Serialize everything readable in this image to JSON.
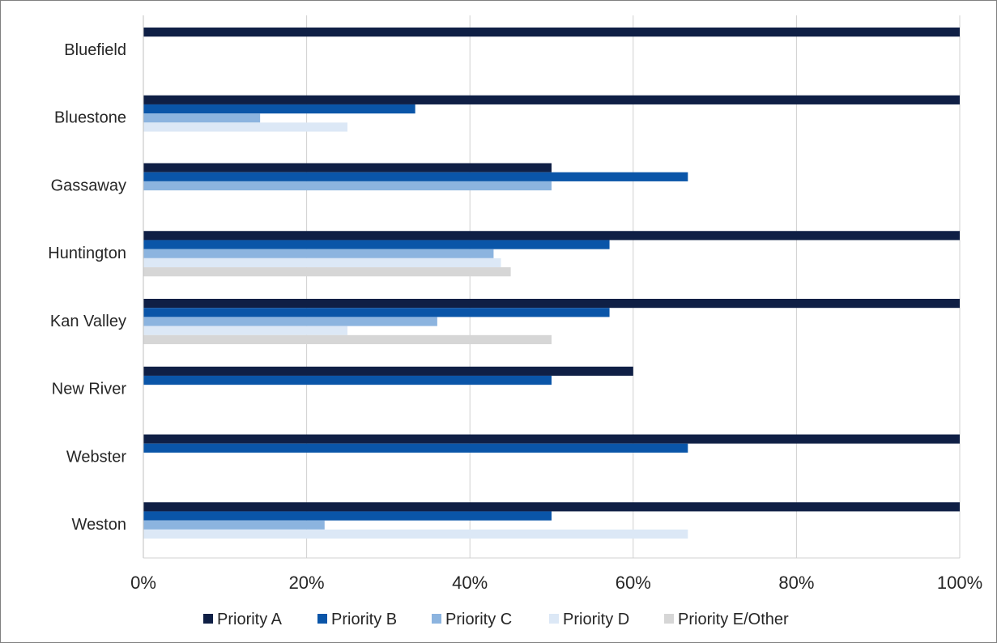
{
  "chart_data": {
    "type": "bar",
    "orientation": "horizontal",
    "categories": [
      "Bluefield",
      "Bluestone",
      "Gassaway",
      "Huntington",
      "Kan Valley",
      "New River",
      "Webster",
      "Weston"
    ],
    "series": [
      {
        "name": "Priority A",
        "color": "#0f1f45",
        "values": [
          100,
          100,
          50,
          100,
          100,
          60,
          100,
          100
        ]
      },
      {
        "name": "Priority B",
        "color": "#0a55a8",
        "values": [
          null,
          33.3,
          66.7,
          57.1,
          57.1,
          50,
          66.7,
          50
        ]
      },
      {
        "name": "Priority C",
        "color": "#8cb4df",
        "values": [
          null,
          14.3,
          50,
          42.9,
          36,
          null,
          null,
          22.2
        ]
      },
      {
        "name": "Priority D",
        "color": "#dce8f6",
        "values": [
          null,
          25,
          null,
          43.8,
          25,
          null,
          null,
          66.7
        ]
      },
      {
        "name": "Priority E/Other",
        "color": "#d6d6d6",
        "values": [
          null,
          null,
          null,
          45,
          50,
          null,
          null,
          null
        ]
      }
    ],
    "xlim": [
      0,
      100
    ],
    "xticks": [
      0,
      20,
      40,
      60,
      80,
      100
    ],
    "xtick_labels": [
      "0%",
      "20%",
      "40%",
      "60%",
      "80%",
      "100%"
    ],
    "grid": "vertical",
    "legend_position": "bottom"
  }
}
